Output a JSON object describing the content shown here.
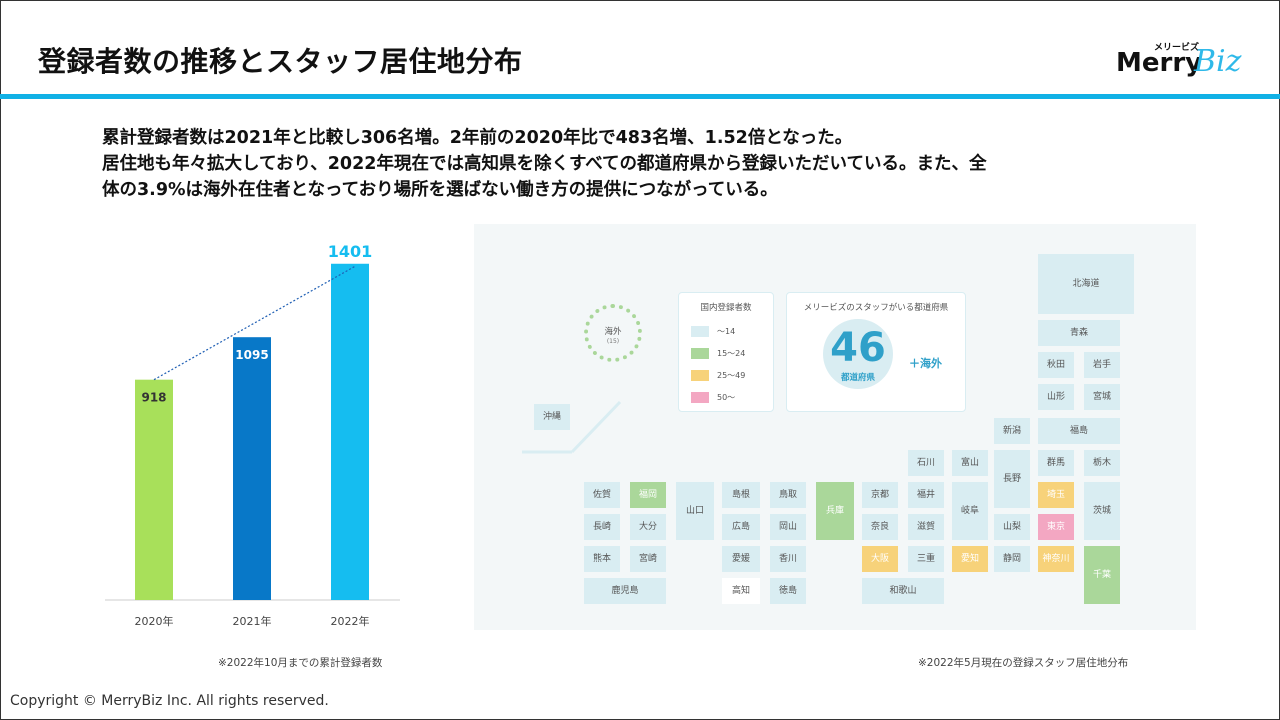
{
  "slide": {
    "title": "登録者数の推移とスタッフ居住地分布",
    "logo": {
      "kana": "メリービズ",
      "merry": "Merry",
      "biz": "Biz"
    },
    "summary": [
      "累計登録者数は2021年と比較し306名増。2年前の2020年比で483名増、1.52倍となった。",
      "居住地も年々拡大しており、2022年現在では高知県を除くすべての都道府県から登録いただいている。また、全",
      "体の3.9%は海外在住者となっており場所を選ばない働き方の提供につながっている。"
    ],
    "chart_caption": "※2022年10月までの累計登録者数",
    "map_caption": "※2022年5月現在の登録スタッフ居住地分布",
    "copyright": "Copyright © MerryBiz Inc. All rights reserved."
  },
  "chart_data": {
    "type": "bar",
    "categories": [
      "2020年",
      "2021年",
      "2022年"
    ],
    "values": [
      918,
      1095,
      1401
    ],
    "colors": [
      "#a8e05a",
      "#0878c8",
      "#15bdf0"
    ],
    "label_colors": [
      "#333333",
      "#ffffff",
      "#15bdf0"
    ],
    "trendline": true,
    "trendline_color": "#1f5fb4",
    "ylim": [
      0,
      1500
    ],
    "title": "",
    "xlabel": "",
    "ylabel": ""
  },
  "map": {
    "legend": {
      "title": "国内登録者数",
      "items": [
        {
          "label": "〜14",
          "color": "#d9edf2"
        },
        {
          "label": "15〜24",
          "color": "#aad79a"
        },
        {
          "label": "25〜49",
          "color": "#f7d27a"
        },
        {
          "label": "50〜",
          "color": "#f3a7c2"
        }
      ]
    },
    "stat": {
      "title": "メリービズのスタッフがいる都道府県",
      "number": "46",
      "unit": "都道府県",
      "plus": "＋海外"
    },
    "overseas": {
      "label": "海外",
      "count": "(15)"
    },
    "prefectures": {
      "hokkaido": "北海道",
      "aomori": "青森",
      "akita": "秋田",
      "iwate": "岩手",
      "yamagata": "山形",
      "miyagi": "宮城",
      "niigata": "新潟",
      "fukushima": "福島",
      "ishikawa": "石川",
      "toyama": "富山",
      "nagano": "長野",
      "gunma": "群馬",
      "tochigi": "栃木",
      "fukui": "福井",
      "gifu": "岐阜",
      "saitama": "埼玉",
      "ibaraki": "茨城",
      "yamanashi": "山梨",
      "tokyo": "東京",
      "kyoto": "京都",
      "shiga": "滋賀",
      "nara": "奈良",
      "osaka": "大阪",
      "mie": "三重",
      "aichi": "愛知",
      "shizuoka": "静岡",
      "kanagawa": "神奈川",
      "chiba": "千葉",
      "wakayama": "和歌山",
      "hyogo": "兵庫",
      "shimane": "島根",
      "tottori": "鳥取",
      "hiroshima": "広島",
      "okayama": "岡山",
      "ehime": "愛媛",
      "kagawa": "香川",
      "kochi": "高知",
      "tokushima": "徳島",
      "yamaguchi": "山口",
      "saga": "佐賀",
      "fukuoka": "福岡",
      "nagasaki": "長崎",
      "oita": "大分",
      "kumamoto": "熊本",
      "miyazaki": "宮崎",
      "kagoshima": "鹿児島",
      "okinawa": "沖縄"
    },
    "levels": {
      "fukuoka": "15〜24",
      "hyogo": "15〜24",
      "chiba": "15〜24",
      "saitama": "25〜49",
      "osaka": "25〜49",
      "aichi": "25〜49",
      "kanagawa": "25〜49",
      "tokyo": "50〜",
      "kochi": "0"
    }
  }
}
